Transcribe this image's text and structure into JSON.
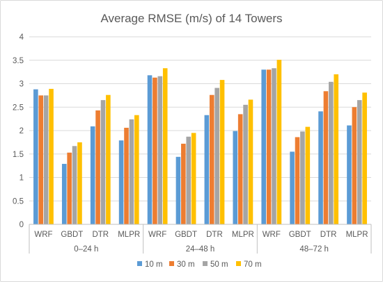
{
  "chart_data": {
    "type": "bar",
    "title": "Average RMSE (m/s) of 14 Towers",
    "xlabel": "",
    "ylabel": "",
    "ylim": [
      0,
      4
    ],
    "yticks": [
      "0",
      "0.5",
      "1",
      "1.5",
      "2",
      "2.5",
      "3",
      "3.5",
      "4"
    ],
    "grid": true,
    "legend_position": "bottom",
    "groups": [
      {
        "label": "0–24 h",
        "categories": [
          "WRF",
          "GBDT",
          "DTR",
          "MLPR"
        ]
      },
      {
        "label": "24–48 h",
        "categories": [
          "WRF",
          "GBDT",
          "DTR",
          "MLPR"
        ]
      },
      {
        "label": "48–72 h",
        "categories": [
          "WRF",
          "GBDT",
          "DTR",
          "MLPR"
        ]
      }
    ],
    "series": [
      {
        "name": "10 m",
        "color": "#5b9bd5",
        "values": [
          2.88,
          1.29,
          2.09,
          1.79,
          3.18,
          1.44,
          2.33,
          1.99,
          3.3,
          1.55,
          2.41,
          2.11
        ]
      },
      {
        "name": "30 m",
        "color": "#ed7d31",
        "values": [
          2.75,
          1.53,
          2.43,
          2.06,
          3.13,
          1.72,
          2.76,
          2.35,
          3.3,
          1.86,
          2.84,
          2.5
        ]
      },
      {
        "name": "50 m",
        "color": "#a5a5a5",
        "values": [
          2.75,
          1.67,
          2.65,
          2.24,
          3.16,
          1.87,
          2.91,
          2.55,
          3.33,
          1.98,
          3.04,
          2.65
        ]
      },
      {
        "name": "70 m",
        "color": "#ffc000",
        "values": [
          2.89,
          1.75,
          2.76,
          2.33,
          3.33,
          1.95,
          3.08,
          2.66,
          3.51,
          2.08,
          3.2,
          2.81
        ]
      }
    ]
  }
}
